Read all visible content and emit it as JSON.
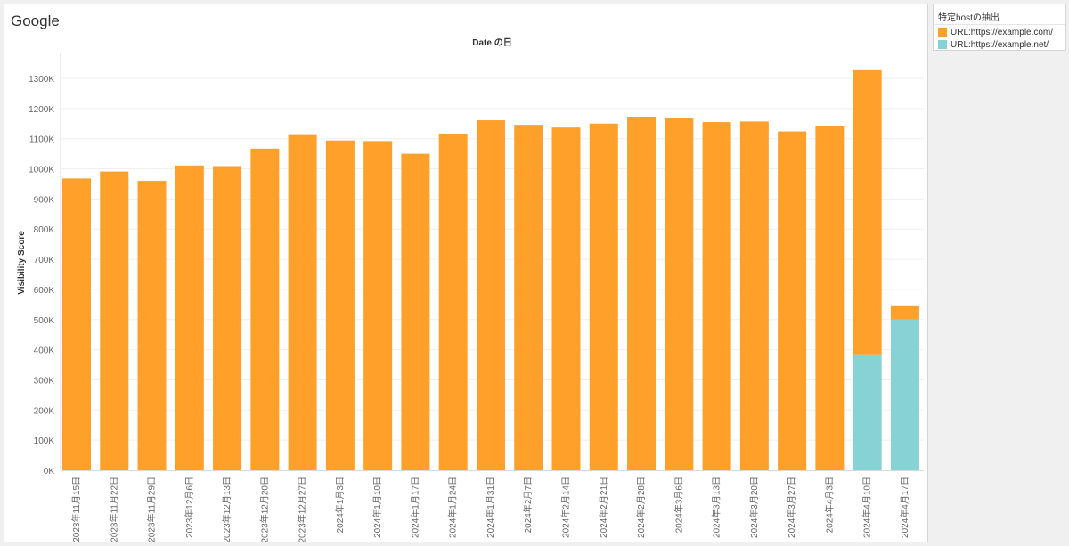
{
  "header": {
    "title": "Google"
  },
  "legend": {
    "title": "特定hostの抽出",
    "items": [
      {
        "label": "URL:https://example.com/",
        "color": "#FFA02A"
      },
      {
        "label": "URL:https://example.net/",
        "color": "#86D2D5"
      }
    ]
  },
  "chart_data": {
    "type": "bar",
    "stacked": true,
    "title": "Date の日",
    "xlabel": "",
    "ylabel": "Visibility Score",
    "ylim": [
      0,
      1300000
    ],
    "yticks": [
      0,
      100000,
      200000,
      300000,
      400000,
      500000,
      600000,
      700000,
      800000,
      900000,
      1000000,
      1100000,
      1200000,
      1300000
    ],
    "ytick_labels": [
      "0K",
      "100K",
      "200K",
      "300K",
      "400K",
      "500K",
      "600K",
      "700K",
      "800K",
      "900K",
      "1000K",
      "1100K",
      "1200K",
      "1300K"
    ],
    "grid": true,
    "legend_position": "top-right",
    "categories": [
      "2023年11月15日",
      "2023年11月22日",
      "2023年11月29日",
      "2023年12月6日",
      "2023年12月13日",
      "2023年12月20日",
      "2023年12月27日",
      "2024年1月3日",
      "2024年1月10日",
      "2024年1月17日",
      "2024年1月24日",
      "2024年1月31日",
      "2024年2月7日",
      "2024年2月14日",
      "2024年2月21日",
      "2024年2月28日",
      "2024年3月6日",
      "2024年3月13日",
      "2024年3月20日",
      "2024年3月27日",
      "2024年4月3日",
      "2024年4月10日",
      "2024年4月17日"
    ],
    "series": [
      {
        "name": "URL:https://example.net/",
        "color": "#86D2D5",
        "values": [
          0,
          0,
          0,
          0,
          0,
          0,
          0,
          0,
          0,
          0,
          0,
          0,
          0,
          0,
          0,
          0,
          0,
          0,
          0,
          0,
          0,
          382000,
          500000
        ]
      },
      {
        "name": "URL:https://example.com/",
        "color": "#FFA02A",
        "values": [
          968000,
          991000,
          960000,
          1011000,
          1009000,
          1067000,
          1112000,
          1094000,
          1092000,
          1050000,
          1117000,
          1161000,
          1146000,
          1137000,
          1150000,
          1173000,
          1169000,
          1155000,
          1157000,
          1124000,
          1142000,
          945000,
          47000
        ]
      }
    ]
  }
}
